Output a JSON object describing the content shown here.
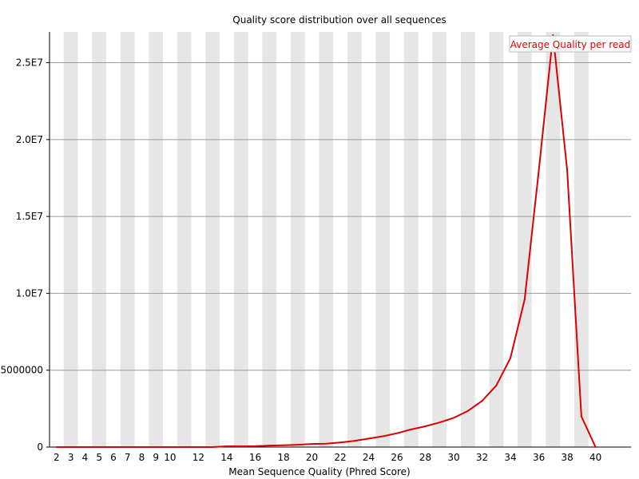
{
  "chart_data": {
    "type": "line",
    "title": "Quality score distribution over all sequences",
    "xlabel": "Mean Sequence Quality (Phred Score)",
    "ylabel": "",
    "x": [
      2,
      3,
      4,
      5,
      6,
      7,
      8,
      9,
      10,
      11,
      12,
      13,
      14,
      15,
      16,
      17,
      18,
      19,
      20,
      21,
      22,
      23,
      24,
      25,
      26,
      27,
      28,
      29,
      30,
      31,
      32,
      33,
      34,
      35,
      36,
      37,
      38,
      39,
      40
    ],
    "x_tick_labels": [
      "2",
      "3",
      "4",
      "5",
      "6",
      "7",
      "8",
      "9",
      "10",
      "12",
      "14",
      "16",
      "18",
      "20",
      "22",
      "24",
      "26",
      "28",
      "30",
      "32",
      "34",
      "36",
      "38",
      "40"
    ],
    "xlim": [
      1.5,
      42.5
    ],
    "ylim": [
      0,
      27000000
    ],
    "y_ticks": [
      0,
      5000000,
      10000000,
      15000000,
      20000000,
      25000000
    ],
    "y_tick_labels": [
      "0",
      "5000000",
      "1.0E7",
      "1.5E7",
      "2.0E7",
      "2.5E7"
    ],
    "series": [
      {
        "name": "Average Quality per read",
        "color": "#dd0000",
        "values": [
          0,
          0,
          0,
          0,
          0,
          0,
          0,
          0,
          0,
          0,
          0,
          0,
          50000,
          50000,
          60000,
          100000,
          120000,
          150000,
          200000,
          220000,
          300000,
          400000,
          550000,
          700000,
          900000,
          1150000,
          1350000,
          1600000,
          1900000,
          2350000,
          3000000,
          4000000,
          5800000,
          9600000,
          18000000,
          26800000,
          18000000,
          2000000,
          0
        ]
      }
    ],
    "bands": "alternating light-gray vertical bands per category",
    "legend_position": "top-right",
    "grid": "horizontal"
  }
}
